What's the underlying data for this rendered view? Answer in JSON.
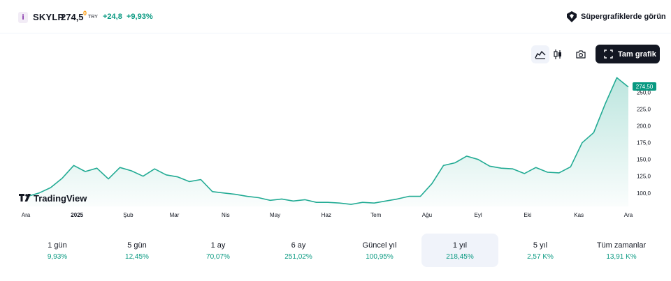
{
  "header": {
    "info_icon": "i",
    "symbol": "SKYLP",
    "price": "274,5",
    "price_sup": "0",
    "currency": "TRY",
    "change_abs": "+24,8",
    "change_pct": "+9,93%",
    "supercharts_label": "Süpergrafiklerde görün"
  },
  "toolbar": {
    "full_chart_label": "Tam grafik",
    "icons": [
      "area-chart-icon",
      "candlestick-icon",
      "camera-icon",
      "fullscreen-icon"
    ]
  },
  "colors": {
    "accent_green": "#089981",
    "line": "#22ab94",
    "text": "#131722",
    "active_bg": "#f0f3fa"
  },
  "chart_data": {
    "type": "area",
    "title": "",
    "xlabel": "",
    "ylabel": "",
    "watermark": "TradingView",
    "x_ticks": [
      "Ara",
      "2025",
      "Şub",
      "Mar",
      "Nis",
      "May",
      "Haz",
      "Tem",
      "Ağu",
      "Eyl",
      "Eki",
      "Kas",
      "Ara"
    ],
    "y_ticks": [
      "100,0",
      "125,0",
      "150,0",
      "175,0",
      "200,0",
      "225,0",
      "250,0"
    ],
    "ylim": [
      80,
      288
    ],
    "last_value_label": "274,50",
    "x": [
      "2024-12-02",
      "2024-12-09",
      "2024-12-16",
      "2024-12-23",
      "2024-12-30",
      "2025-01-06",
      "2025-01-13",
      "2025-01-20",
      "2025-01-27",
      "2025-02-03",
      "2025-02-10",
      "2025-02-17",
      "2025-02-24",
      "2025-03-03",
      "2025-03-10",
      "2025-03-17",
      "2025-03-24",
      "2025-03-31",
      "2025-04-07",
      "2025-04-14",
      "2025-04-21",
      "2025-04-28",
      "2025-05-05",
      "2025-05-12",
      "2025-05-19",
      "2025-05-26",
      "2025-06-02",
      "2025-06-09",
      "2025-06-16",
      "2025-06-23",
      "2025-06-30",
      "2025-07-07",
      "2025-07-14",
      "2025-07-21",
      "2025-07-28",
      "2025-08-04",
      "2025-08-11",
      "2025-08-18",
      "2025-08-25",
      "2025-09-01",
      "2025-09-08",
      "2025-09-15",
      "2025-09-22",
      "2025-09-29",
      "2025-10-06",
      "2025-10-13",
      "2025-10-20",
      "2025-10-27",
      "2025-11-03",
      "2025-11-10",
      "2025-11-17",
      "2025-11-24",
      "2025-12-01"
    ],
    "series": [
      {
        "values": [
          95,
          100,
          108,
          122,
          141,
          132,
          137,
          121,
          138,
          133,
          125,
          136,
          127,
          124,
          117,
          120,
          102,
          100,
          98,
          95,
          93,
          89,
          91,
          88,
          90,
          86,
          86,
          85,
          83,
          86,
          85,
          88,
          91,
          95,
          95,
          114,
          141,
          145,
          155,
          150,
          140,
          137,
          136,
          129,
          138,
          131,
          130,
          139,
          175,
          190,
          233,
          272,
          258
        ]
      }
    ]
  },
  "periods": [
    {
      "label": "1 gün",
      "value": "9,93%"
    },
    {
      "label": "5 gün",
      "value": "12,45%"
    },
    {
      "label": "1 ay",
      "value": "70,07%"
    },
    {
      "label": "6 ay",
      "value": "251,02%"
    },
    {
      "label": "Güncel yıl",
      "value": "100,95%"
    },
    {
      "label": "1 yıl",
      "value": "218,45%",
      "active": true
    },
    {
      "label": "5 yıl",
      "value": "2,57 K%"
    },
    {
      "label": "Tüm zamanlar",
      "value": "13,91 K%"
    }
  ]
}
